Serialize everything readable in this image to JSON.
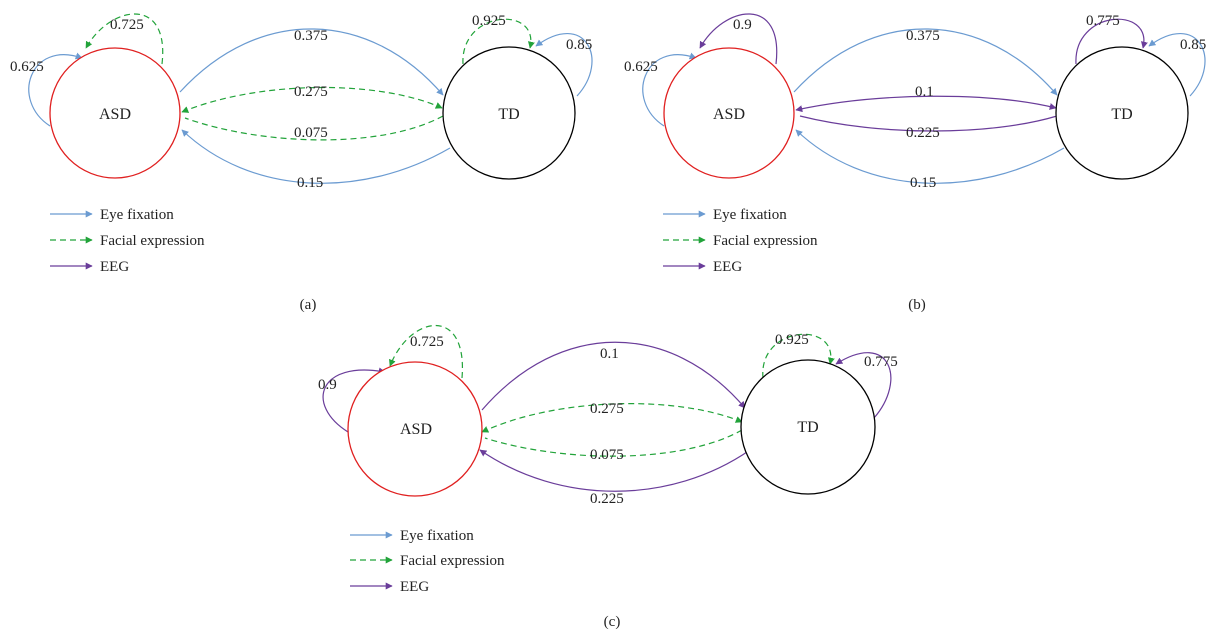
{
  "colors": {
    "asd": "#e02020",
    "td": "#000000",
    "eye": "#6b9bd1",
    "facial": "#22a33a",
    "eeg": "#6a3d9a"
  },
  "legend": [
    {
      "key": "eye",
      "label": "Eye fixation",
      "style": "solid"
    },
    {
      "key": "facial",
      "label": "Facial expression",
      "style": "dashed"
    },
    {
      "key": "eeg",
      "label": "EEG",
      "style": "solid"
    }
  ],
  "panels": [
    {
      "caption": "(a)",
      "nodes": {
        "asd": "ASD",
        "td": "TD"
      },
      "edges": [
        {
          "from": "ASD",
          "to": "ASD",
          "modality": "eye",
          "label": "0.625"
        },
        {
          "from": "ASD",
          "to": "ASD",
          "modality": "facial",
          "label": "0.725"
        },
        {
          "from": "TD",
          "to": "TD",
          "modality": "facial",
          "label": "0.925"
        },
        {
          "from": "TD",
          "to": "TD",
          "modality": "eye",
          "label": "0.85"
        },
        {
          "from": "ASD",
          "to": "TD",
          "modality": "eye",
          "label": "0.375"
        },
        {
          "from": "ASD",
          "to": "TD",
          "modality": "facial",
          "label": "0.275"
        },
        {
          "from": "TD",
          "to": "ASD",
          "modality": "facial",
          "label": "0.075"
        },
        {
          "from": "TD",
          "to": "ASD",
          "modality": "eye",
          "label": "0.15"
        }
      ]
    },
    {
      "caption": "(b)",
      "nodes": {
        "asd": "ASD",
        "td": "TD"
      },
      "edges": [
        {
          "from": "ASD",
          "to": "ASD",
          "modality": "eye",
          "label": "0.625"
        },
        {
          "from": "ASD",
          "to": "ASD",
          "modality": "eeg",
          "label": "0.9"
        },
        {
          "from": "TD",
          "to": "TD",
          "modality": "eeg",
          "label": "0.775"
        },
        {
          "from": "TD",
          "to": "TD",
          "modality": "eye",
          "label": "0.85"
        },
        {
          "from": "ASD",
          "to": "TD",
          "modality": "eye",
          "label": "0.375"
        },
        {
          "from": "ASD",
          "to": "TD",
          "modality": "eeg",
          "label": "0.1"
        },
        {
          "from": "TD",
          "to": "ASD",
          "modality": "eeg",
          "label": "0.225"
        },
        {
          "from": "TD",
          "to": "ASD",
          "modality": "eye",
          "label": "0.15"
        }
      ]
    },
    {
      "caption": "(c)",
      "nodes": {
        "asd": "ASD",
        "td": "TD"
      },
      "edges": [
        {
          "from": "ASD",
          "to": "ASD",
          "modality": "eeg",
          "label": "0.9"
        },
        {
          "from": "ASD",
          "to": "ASD",
          "modality": "facial",
          "label": "0.725"
        },
        {
          "from": "TD",
          "to": "TD",
          "modality": "facial",
          "label": "0.925"
        },
        {
          "from": "TD",
          "to": "TD",
          "modality": "eeg",
          "label": "0.775"
        },
        {
          "from": "ASD",
          "to": "TD",
          "modality": "eeg",
          "label": "0.1"
        },
        {
          "from": "ASD",
          "to": "TD",
          "modality": "facial",
          "label": "0.275"
        },
        {
          "from": "TD",
          "to": "ASD",
          "modality": "facial",
          "label": "0.075"
        },
        {
          "from": "TD",
          "to": "ASD",
          "modality": "eeg",
          "label": "0.225"
        }
      ]
    }
  ]
}
